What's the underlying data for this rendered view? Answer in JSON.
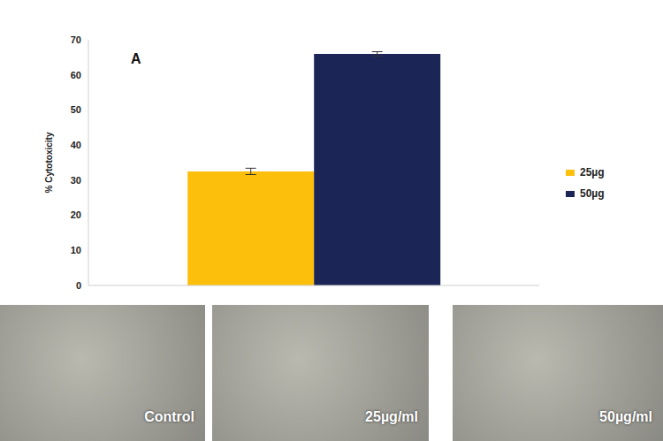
{
  "chart_data": {
    "type": "bar",
    "annotations": [
      "A"
    ],
    "y_label": "% Cytotoxicity",
    "categories": [
      null
    ],
    "series": [
      {
        "name": "25µg",
        "color": "#fcbf0c",
        "values": [
          32.5
        ],
        "error": [
          0.9
        ]
      },
      {
        "name": "50µg",
        "color": "#1b2556",
        "values": [
          66
        ],
        "error": [
          0.6
        ]
      }
    ],
    "ylim": [
      0,
      70
    ],
    "yticks": [
      0,
      10,
      20,
      30,
      40,
      50,
      60,
      70
    ],
    "grid": false,
    "legend": "right"
  },
  "micrographs": {
    "labels": [
      "Control",
      "25µg/ml",
      "50µg/ml"
    ]
  }
}
